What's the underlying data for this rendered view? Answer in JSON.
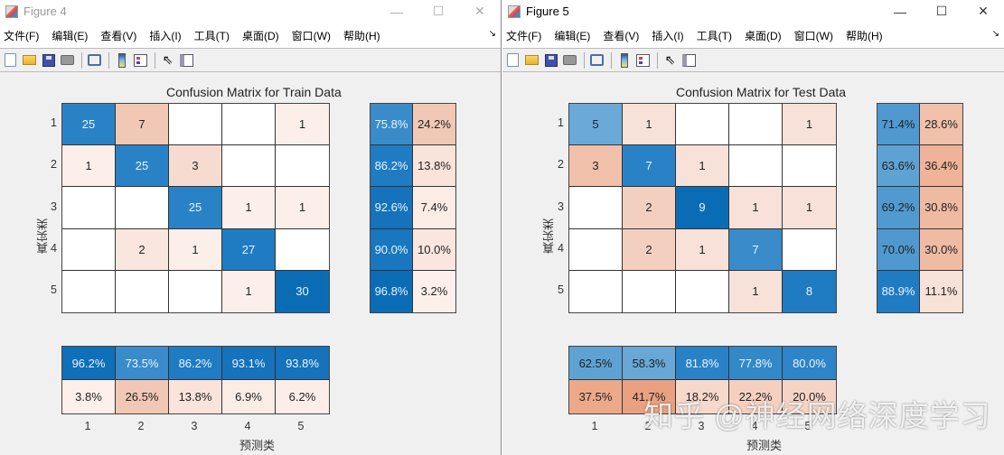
{
  "windows": [
    {
      "title": "Figure 4",
      "menus": [
        "文件(F)",
        "编辑(E)",
        "查看(V)",
        "插入(I)",
        "工具(T)",
        "桌面(D)",
        "窗口(W)",
        "帮助(H)"
      ],
      "controls": {
        "minimize": "—",
        "maximize": "☐",
        "close": "✕"
      }
    },
    {
      "title": "Figure 5",
      "menus": [
        "文件(F)",
        "编辑(E)",
        "查看(V)",
        "插入(I)",
        "工具(T)",
        "桌面(D)",
        "窗口(W)",
        "帮助(H)"
      ],
      "controls": {
        "minimize": "—",
        "maximize": "☐",
        "close": "✕"
      }
    }
  ],
  "toolbar_icons": [
    "new-file-icon",
    "open-folder-icon",
    "save-icon",
    "print-icon",
    "link-plot-icon",
    "colorbar-icon",
    "legend-icon",
    "pointer-arrow-icon",
    "property-inspector-icon"
  ],
  "watermark": "知乎 @神经网络深度学习",
  "colors": {
    "blue_dark": "#0b6cb6",
    "blue_mid": "#2a82c6",
    "blue_light": "#6aa9d8",
    "red_strong": "#eaa889",
    "red_mid": "#f1c7b5",
    "red_light": "#f8e1d8",
    "red_faint": "#fcefea",
    "empty": "#ffffff"
  },
  "chart_data": [
    {
      "type": "heatmap",
      "title": "Confusion Matrix for Train Data",
      "xlabel": "预测类",
      "ylabel": "真实类",
      "categories": [
        "1",
        "2",
        "3",
        "4",
        "5"
      ],
      "matrix": [
        [
          25,
          7,
          null,
          null,
          1
        ],
        [
          1,
          25,
          3,
          null,
          null
        ],
        [
          null,
          null,
          25,
          1,
          1
        ],
        [
          null,
          2,
          1,
          27,
          null
        ],
        [
          null,
          null,
          null,
          1,
          30
        ]
      ],
      "row_summary": [
        [
          "75.8%",
          "24.2%"
        ],
        [
          "86.2%",
          "13.8%"
        ],
        [
          "92.6%",
          "7.4%"
        ],
        [
          "90.0%",
          "10.0%"
        ],
        [
          "96.8%",
          "3.2%"
        ]
      ],
      "column_summary": [
        [
          "96.2%",
          "73.5%",
          "86.2%",
          "93.1%",
          "93.8%"
        ],
        [
          "3.8%",
          "26.5%",
          "13.8%",
          "6.9%",
          "6.2%"
        ]
      ]
    },
    {
      "type": "heatmap",
      "title": "Confusion Matrix for Test Data",
      "xlabel": "预测类",
      "ylabel": "真实类",
      "categories": [
        "1",
        "2",
        "3",
        "4",
        "5"
      ],
      "matrix": [
        [
          5,
          1,
          null,
          null,
          1
        ],
        [
          3,
          7,
          1,
          null,
          null
        ],
        [
          null,
          2,
          9,
          1,
          1
        ],
        [
          null,
          2,
          1,
          7,
          null
        ],
        [
          null,
          null,
          null,
          1,
          8
        ]
      ],
      "row_summary": [
        [
          "71.4%",
          "28.6%"
        ],
        [
          "63.6%",
          "36.4%"
        ],
        [
          "69.2%",
          "30.8%"
        ],
        [
          "70.0%",
          "30.0%"
        ],
        [
          "88.9%",
          "11.1%"
        ]
      ],
      "column_summary": [
        [
          "62.5%",
          "58.3%",
          "81.8%",
          "77.8%",
          "80.0%"
        ],
        [
          "37.5%",
          "41.7%",
          "18.2%",
          "22.2%",
          "20.0%"
        ]
      ]
    }
  ],
  "cell_colors": [
    {
      "matrix": [
        [
          "#2a82c6",
          "#f1c7b5",
          "#ffffff",
          "#ffffff",
          "#fcefea"
        ],
        [
          "#fcefea",
          "#2a82c6",
          "#f6dcd0",
          "#ffffff",
          "#ffffff"
        ],
        [
          "#ffffff",
          "#ffffff",
          "#2a82c6",
          "#fcefea",
          "#fcefea"
        ],
        [
          "#ffffff",
          "#f9e6de",
          "#fcefea",
          "#1f7bc2",
          "#ffffff"
        ],
        [
          "#ffffff",
          "#ffffff",
          "#ffffff",
          "#fcefea",
          "#0b6cb6"
        ]
      ],
      "matrix_light_text": [
        [
          1,
          0,
          0,
          0,
          0
        ],
        [
          0,
          1,
          0,
          0,
          0
        ],
        [
          0,
          0,
          1,
          0,
          0
        ],
        [
          0,
          0,
          0,
          1,
          0
        ],
        [
          0,
          0,
          0,
          0,
          1
        ]
      ],
      "row_summary": [
        [
          "#3a8bc9",
          "#f1c7b5"
        ],
        [
          "#1f7bc2",
          "#fae3da"
        ],
        [
          "#1572bb",
          "#fcece6"
        ],
        [
          "#1877bf",
          "#fae6de"
        ],
        [
          "#0b6cb6",
          "#fdf0eb"
        ]
      ],
      "column_summary": [
        [
          "#0f6fb8",
          "#3a8bc9",
          "#1f7bc2",
          "#1572bb",
          "#1572bb"
        ],
        [
          "#fdefea",
          "#f1c7b5",
          "#fae3da",
          "#fcece6",
          "#fcede8"
        ]
      ]
    },
    {
      "matrix": [
        [
          "#6aa9d8",
          "#f8e1d8",
          "#ffffff",
          "#ffffff",
          "#f8e1d8"
        ],
        [
          "#f1c0aa",
          "#2a82c6",
          "#f8e1d8",
          "#ffffff",
          "#ffffff"
        ],
        [
          "#ffffff",
          "#f3cfc0",
          "#0b6cb6",
          "#f8e1d8",
          "#f8e1d8"
        ],
        [
          "#ffffff",
          "#f3cfc0",
          "#f8e1d8",
          "#3a8bc9",
          "#ffffff"
        ],
        [
          "#ffffff",
          "#ffffff",
          "#ffffff",
          "#f8e1d8",
          "#1f7bc2"
        ]
      ],
      "matrix_light_text": [
        [
          0,
          0,
          0,
          0,
          0
        ],
        [
          0,
          1,
          0,
          0,
          0
        ],
        [
          0,
          0,
          1,
          0,
          0
        ],
        [
          0,
          0,
          0,
          1,
          0
        ],
        [
          0,
          0,
          0,
          0,
          1
        ]
      ],
      "row_summary": [
        [
          "#4f99d0",
          "#f1c0aa"
        ],
        [
          "#5ea2d4",
          "#eeb398"
        ],
        [
          "#519ad0",
          "#efbaa2"
        ],
        [
          "#4f99d0",
          "#efbba3"
        ],
        [
          "#1f7bc2",
          "#f8e1d8"
        ]
      ],
      "column_summary": [
        [
          "#5ea2d4",
          "#67a8d7",
          "#2a82c6",
          "#3389c8",
          "#2d85c7"
        ],
        [
          "#eca98a",
          "#e9a181",
          "#f7d9cb",
          "#f5d0c0",
          "#f6d4c5"
        ]
      ]
    }
  ]
}
